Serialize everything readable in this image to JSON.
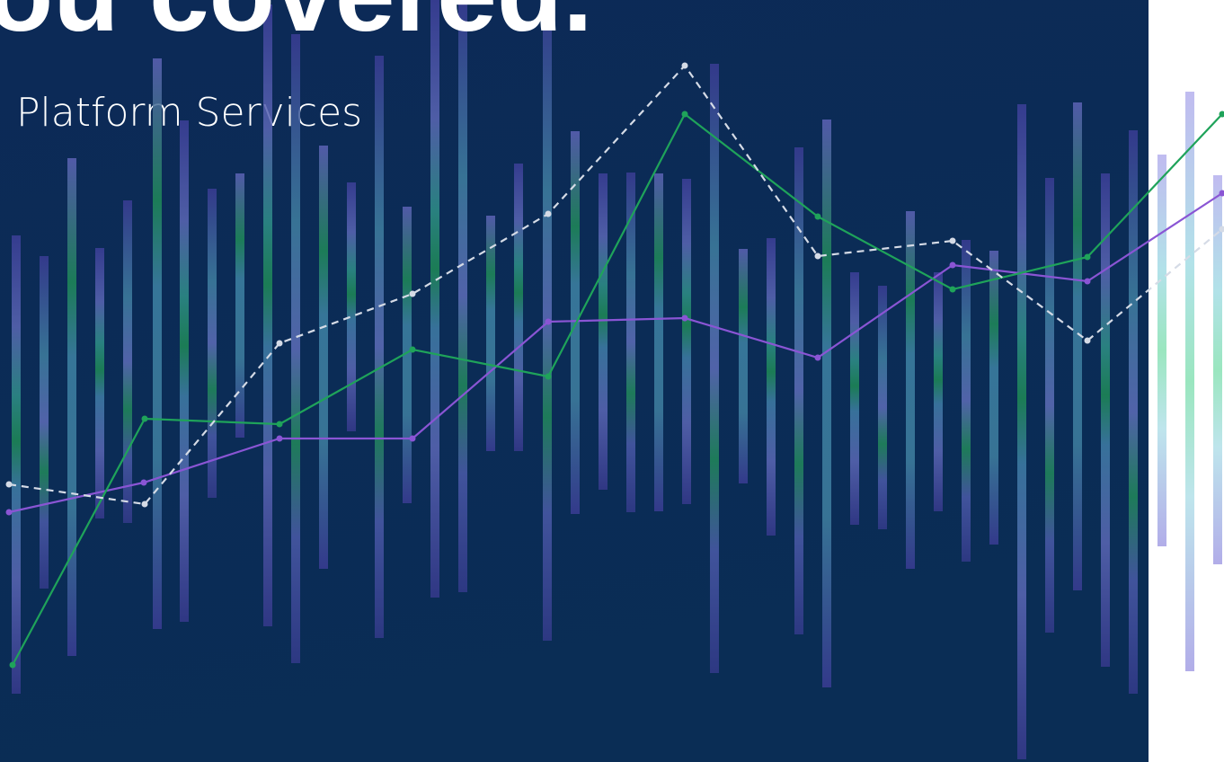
{
  "header": {
    "title": "ou covered.",
    "subtitle": "Platform Services"
  }
}
